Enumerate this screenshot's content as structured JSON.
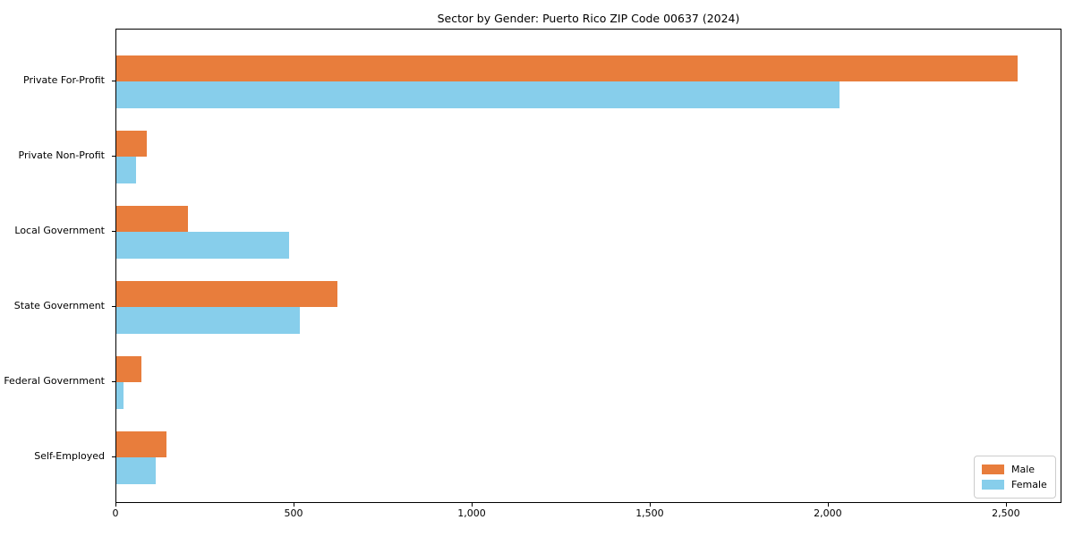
{
  "title": "Sector by Gender: Puerto Rico ZIP Code 00637 (2024)",
  "colors": {
    "male": "#e87d3c",
    "female": "#87ceeb",
    "spine": "#000000",
    "text": "#000000",
    "background": "#ffffff",
    "legend_border": "#cccccc"
  },
  "chart_data": {
    "type": "bar",
    "orientation": "horizontal",
    "title": "Sector by Gender: Puerto Rico ZIP Code 00637 (2024)",
    "xlabel": "",
    "ylabel": "",
    "categories": [
      "Private For-Profit",
      "Private Non-Profit",
      "Local Government",
      "State Government",
      "Federal Government",
      "Self-Employed"
    ],
    "series": [
      {
        "name": "Male",
        "color": "#e87d3c",
        "values": [
          2530,
          85,
          200,
          620,
          70,
          140
        ]
      },
      {
        "name": "Female",
        "color": "#87ceeb",
        "values": [
          2030,
          55,
          485,
          515,
          20,
          110
        ]
      }
    ],
    "xlim": [
      0,
      2656
    ],
    "x_ticks": [
      0,
      500,
      1000,
      1500,
      2000,
      2500
    ],
    "x_tick_labels": [
      "0",
      "500",
      "1,000",
      "1,500",
      "2,000",
      "2,500"
    ],
    "grid": false,
    "legend_position": "lower right"
  },
  "legend": {
    "items": [
      {
        "label": "Male"
      },
      {
        "label": "Female"
      }
    ]
  }
}
